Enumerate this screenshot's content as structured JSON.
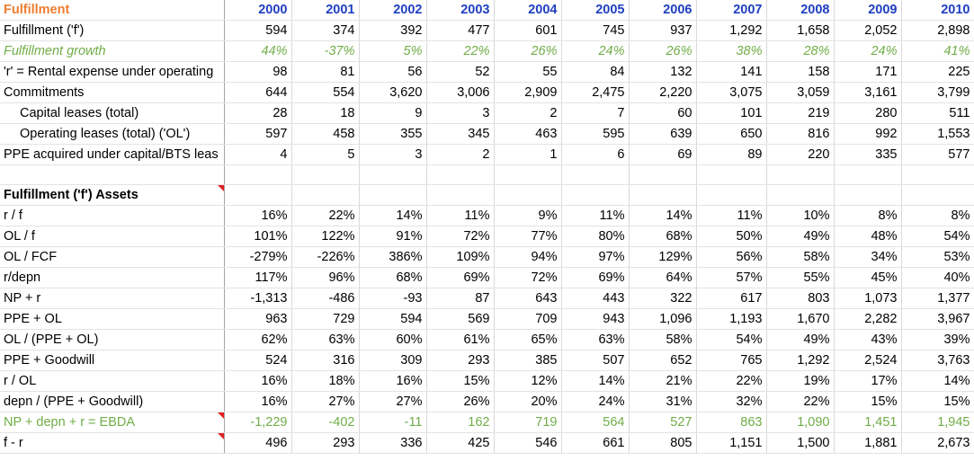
{
  "header": {
    "label": "Fulfillment",
    "years": [
      "2000",
      "2001",
      "2002",
      "2003",
      "2004",
      "2005",
      "2006",
      "2007",
      "2008",
      "2009",
      "2010"
    ]
  },
  "block1": [
    {
      "label": "Fulfillment ('f')",
      "values": [
        "594",
        "374",
        "392",
        "477",
        "601",
        "745",
        "937",
        "1,292",
        "1,658",
        "2,052",
        "2,898"
      ]
    },
    {
      "label": "Fulfillment growth",
      "values": [
        "44%",
        "-37%",
        "5%",
        "22%",
        "26%",
        "24%",
        "26%",
        "38%",
        "28%",
        "24%",
        "41%"
      ]
    },
    {
      "label": "'r' = Rental expense under operating",
      "values": [
        "98",
        "81",
        "56",
        "52",
        "55",
        "84",
        "132",
        "141",
        "158",
        "171",
        "225"
      ]
    },
    {
      "label": "Commitments",
      "values": [
        "644",
        "554",
        "3,620",
        "3,006",
        "2,909",
        "2,475",
        "2,220",
        "3,075",
        "3,059",
        "3,161",
        "3,799"
      ]
    },
    {
      "label": "Capital leases (total)",
      "values": [
        "28",
        "18",
        "9",
        "3",
        "2",
        "7",
        "60",
        "101",
        "219",
        "280",
        "511"
      ]
    },
    {
      "label": "Operating leases (total) ('OL')",
      "values": [
        "597",
        "458",
        "355",
        "345",
        "463",
        "595",
        "639",
        "650",
        "816",
        "992",
        "1,553"
      ]
    },
    {
      "label": "PPE acquired under capital/BTS leas",
      "values": [
        "4",
        "5",
        "3",
        "2",
        "1",
        "6",
        "69",
        "89",
        "220",
        "335",
        "577"
      ]
    }
  ],
  "section_title": "Fulfillment ('f') Assets",
  "block2": [
    {
      "label": "r / f",
      "values": [
        "16%",
        "22%",
        "14%",
        "11%",
        "9%",
        "11%",
        "14%",
        "11%",
        "10%",
        "8%",
        "8%"
      ]
    },
    {
      "label": "OL / f",
      "values": [
        "101%",
        "122%",
        "91%",
        "72%",
        "77%",
        "80%",
        "68%",
        "50%",
        "49%",
        "48%",
        "54%"
      ]
    },
    {
      "label": "OL / FCF",
      "values": [
        "-279%",
        "-226%",
        "386%",
        "109%",
        "94%",
        "97%",
        "129%",
        "56%",
        "58%",
        "34%",
        "53%"
      ]
    },
    {
      "label": "r/depn",
      "values": [
        "117%",
        "96%",
        "68%",
        "69%",
        "72%",
        "69%",
        "64%",
        "57%",
        "55%",
        "45%",
        "40%"
      ]
    },
    {
      "label": "NP + r",
      "values": [
        "-1,313",
        "-486",
        "-93",
        "87",
        "643",
        "443",
        "322",
        "617",
        "803",
        "1,073",
        "1,377"
      ]
    },
    {
      "label": "PPE + OL",
      "values": [
        "963",
        "729",
        "594",
        "569",
        "709",
        "943",
        "1,096",
        "1,193",
        "1,670",
        "2,282",
        "3,967"
      ]
    },
    {
      "label": "OL / (PPE + OL)",
      "values": [
        "62%",
        "63%",
        "60%",
        "61%",
        "65%",
        "63%",
        "58%",
        "54%",
        "49%",
        "43%",
        "39%"
      ]
    },
    {
      "label": "PPE + Goodwill",
      "values": [
        "524",
        "316",
        "309",
        "293",
        "385",
        "507",
        "652",
        "765",
        "1,292",
        "2,524",
        "3,763"
      ]
    },
    {
      "label": "r / OL",
      "values": [
        "16%",
        "18%",
        "16%",
        "15%",
        "12%",
        "14%",
        "21%",
        "22%",
        "19%",
        "17%",
        "14%"
      ]
    },
    {
      "label": "depn / (PPE + Goodwill)",
      "values": [
        "16%",
        "27%",
        "27%",
        "26%",
        "20%",
        "24%",
        "31%",
        "32%",
        "22%",
        "15%",
        "15%"
      ]
    },
    {
      "label": "NP + depn + r = EBDA",
      "values": [
        "-1,229",
        "-402",
        "-11",
        "162",
        "719",
        "564",
        "527",
        "863",
        "1,090",
        "1,451",
        "1,945"
      ]
    },
    {
      "label": "f - r",
      "values": [
        "496",
        "293",
        "336",
        "425",
        "546",
        "661",
        "805",
        "1,151",
        "1,500",
        "1,881",
        "2,673"
      ]
    }
  ],
  "colors": {
    "header_label": "#ed7d31",
    "year_header": "#1f3fbf",
    "growth_green": "#70ad47",
    "comment_marker": "#e02020"
  }
}
